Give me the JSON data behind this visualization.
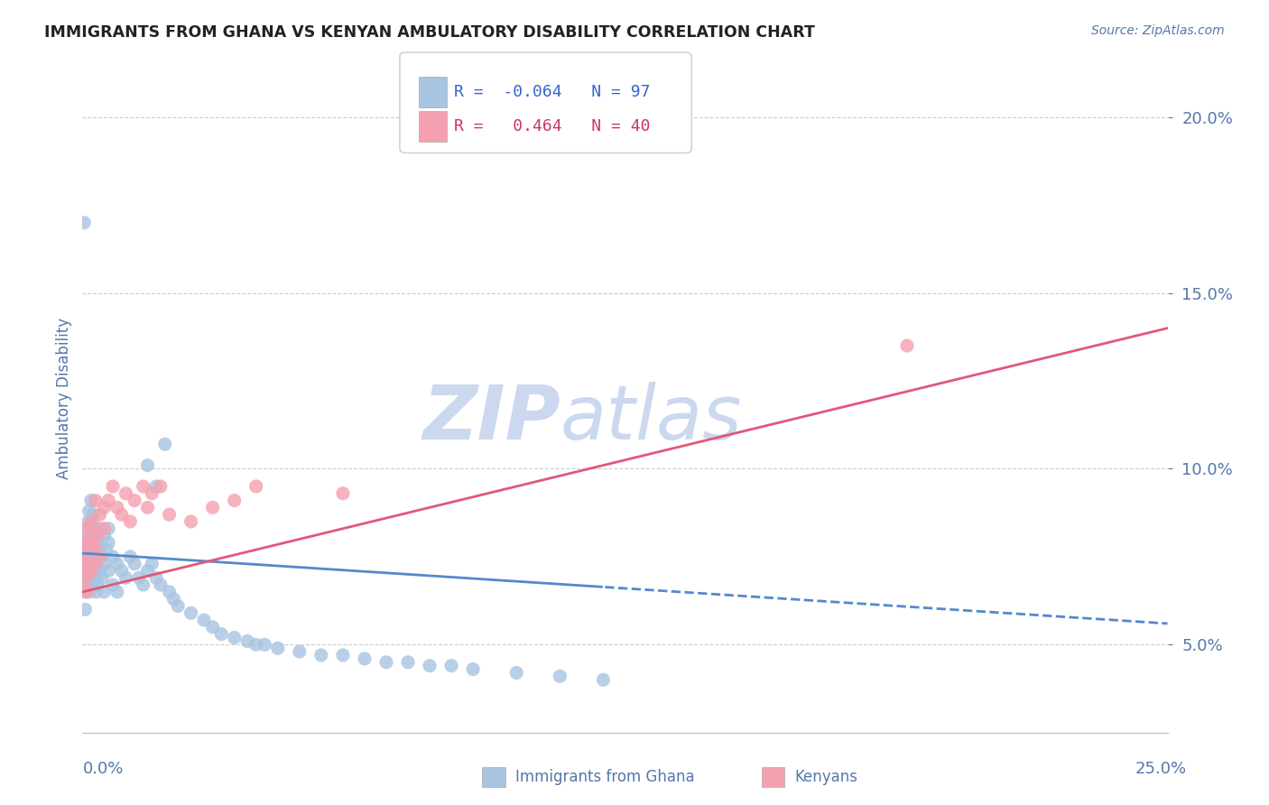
{
  "title": "IMMIGRANTS FROM GHANA VS KENYAN AMBULATORY DISABILITY CORRELATION CHART",
  "source": "Source: ZipAtlas.com",
  "ylabel": "Ambulatory Disability",
  "x_min": 0.0,
  "x_max": 0.25,
  "y_min": 0.025,
  "y_max": 0.215,
  "yticks": [
    0.05,
    0.1,
    0.15,
    0.2
  ],
  "ytick_labels": [
    "5.0%",
    "10.0%",
    "15.0%",
    "20.0%"
  ],
  "ghana_color": "#a8c4e0",
  "kenya_color": "#f4a0b0",
  "ghana_line_color": "#5588cc",
  "kenya_line_color": "#e05878",
  "ghana_R": -0.064,
  "ghana_N": 97,
  "kenya_R": 0.464,
  "kenya_N": 40,
  "ghana_points_x": [
    0.0002,
    0.0003,
    0.0005,
    0.0005,
    0.0006,
    0.0007,
    0.0008,
    0.0008,
    0.0009,
    0.001,
    0.001,
    0.001,
    0.0012,
    0.0012,
    0.0013,
    0.0013,
    0.0014,
    0.0015,
    0.0015,
    0.0016,
    0.0016,
    0.0017,
    0.0018,
    0.0018,
    0.002,
    0.002,
    0.002,
    0.0022,
    0.0022,
    0.0023,
    0.0023,
    0.0025,
    0.0025,
    0.0027,
    0.0028,
    0.003,
    0.003,
    0.003,
    0.0032,
    0.0033,
    0.0035,
    0.0035,
    0.004,
    0.004,
    0.004,
    0.0042,
    0.0045,
    0.005,
    0.005,
    0.005,
    0.0055,
    0.006,
    0.006,
    0.006,
    0.007,
    0.007,
    0.008,
    0.008,
    0.009,
    0.01,
    0.011,
    0.012,
    0.013,
    0.014,
    0.015,
    0.016,
    0.017,
    0.018,
    0.02,
    0.021,
    0.022,
    0.025,
    0.028,
    0.03,
    0.032,
    0.035,
    0.038,
    0.04,
    0.042,
    0.045,
    0.05,
    0.055,
    0.06,
    0.065,
    0.07,
    0.075,
    0.08,
    0.085,
    0.09,
    0.1,
    0.11,
    0.12,
    0.015,
    0.017,
    0.019,
    0.0004,
    0.0006
  ],
  "ghana_points_y": [
    0.072,
    0.068,
    0.075,
    0.065,
    0.08,
    0.07,
    0.073,
    0.078,
    0.069,
    0.076,
    0.074,
    0.083,
    0.071,
    0.067,
    0.079,
    0.085,
    0.073,
    0.088,
    0.069,
    0.077,
    0.065,
    0.072,
    0.08,
    0.068,
    0.091,
    0.075,
    0.071,
    0.085,
    0.067,
    0.079,
    0.073,
    0.087,
    0.077,
    0.083,
    0.071,
    0.069,
    0.075,
    0.081,
    0.065,
    0.073,
    0.079,
    0.067,
    0.077,
    0.071,
    0.083,
    0.075,
    0.069,
    0.081,
    0.073,
    0.065,
    0.077,
    0.079,
    0.071,
    0.083,
    0.075,
    0.067,
    0.073,
    0.065,
    0.071,
    0.069,
    0.075,
    0.073,
    0.069,
    0.067,
    0.071,
    0.073,
    0.069,
    0.067,
    0.065,
    0.063,
    0.061,
    0.059,
    0.057,
    0.055,
    0.053,
    0.052,
    0.051,
    0.05,
    0.05,
    0.049,
    0.048,
    0.047,
    0.047,
    0.046,
    0.045,
    0.045,
    0.044,
    0.044,
    0.043,
    0.042,
    0.041,
    0.04,
    0.101,
    0.095,
    0.107,
    0.17,
    0.06
  ],
  "kenya_points_x": [
    0.0003,
    0.0005,
    0.0007,
    0.0008,
    0.001,
    0.001,
    0.0013,
    0.0015,
    0.0017,
    0.002,
    0.002,
    0.0022,
    0.0025,
    0.003,
    0.003,
    0.003,
    0.0035,
    0.004,
    0.004,
    0.005,
    0.005,
    0.006,
    0.007,
    0.008,
    0.009,
    0.01,
    0.011,
    0.012,
    0.014,
    0.015,
    0.016,
    0.018,
    0.02,
    0.025,
    0.03,
    0.035,
    0.04,
    0.06,
    0.19,
    0.0009
  ],
  "kenya_points_y": [
    0.068,
    0.075,
    0.072,
    0.079,
    0.065,
    0.083,
    0.07,
    0.077,
    0.073,
    0.085,
    0.071,
    0.079,
    0.083,
    0.077,
    0.073,
    0.091,
    0.081,
    0.087,
    0.075,
    0.089,
    0.083,
    0.091,
    0.095,
    0.089,
    0.087,
    0.093,
    0.085,
    0.091,
    0.095,
    0.089,
    0.093,
    0.095,
    0.087,
    0.085,
    0.089,
    0.091,
    0.095,
    0.093,
    0.135,
    0.079
  ],
  "watermark_left": "ZIP",
  "watermark_right": "atlas",
  "watermark_color": "#ccd8ee",
  "background_color": "#ffffff",
  "grid_color": "#cccccc",
  "title_color": "#222222",
  "axis_label_color": "#5577aa",
  "legend_r_color_ghana": "#3366cc",
  "legend_r_color_kenya": "#cc3366"
}
